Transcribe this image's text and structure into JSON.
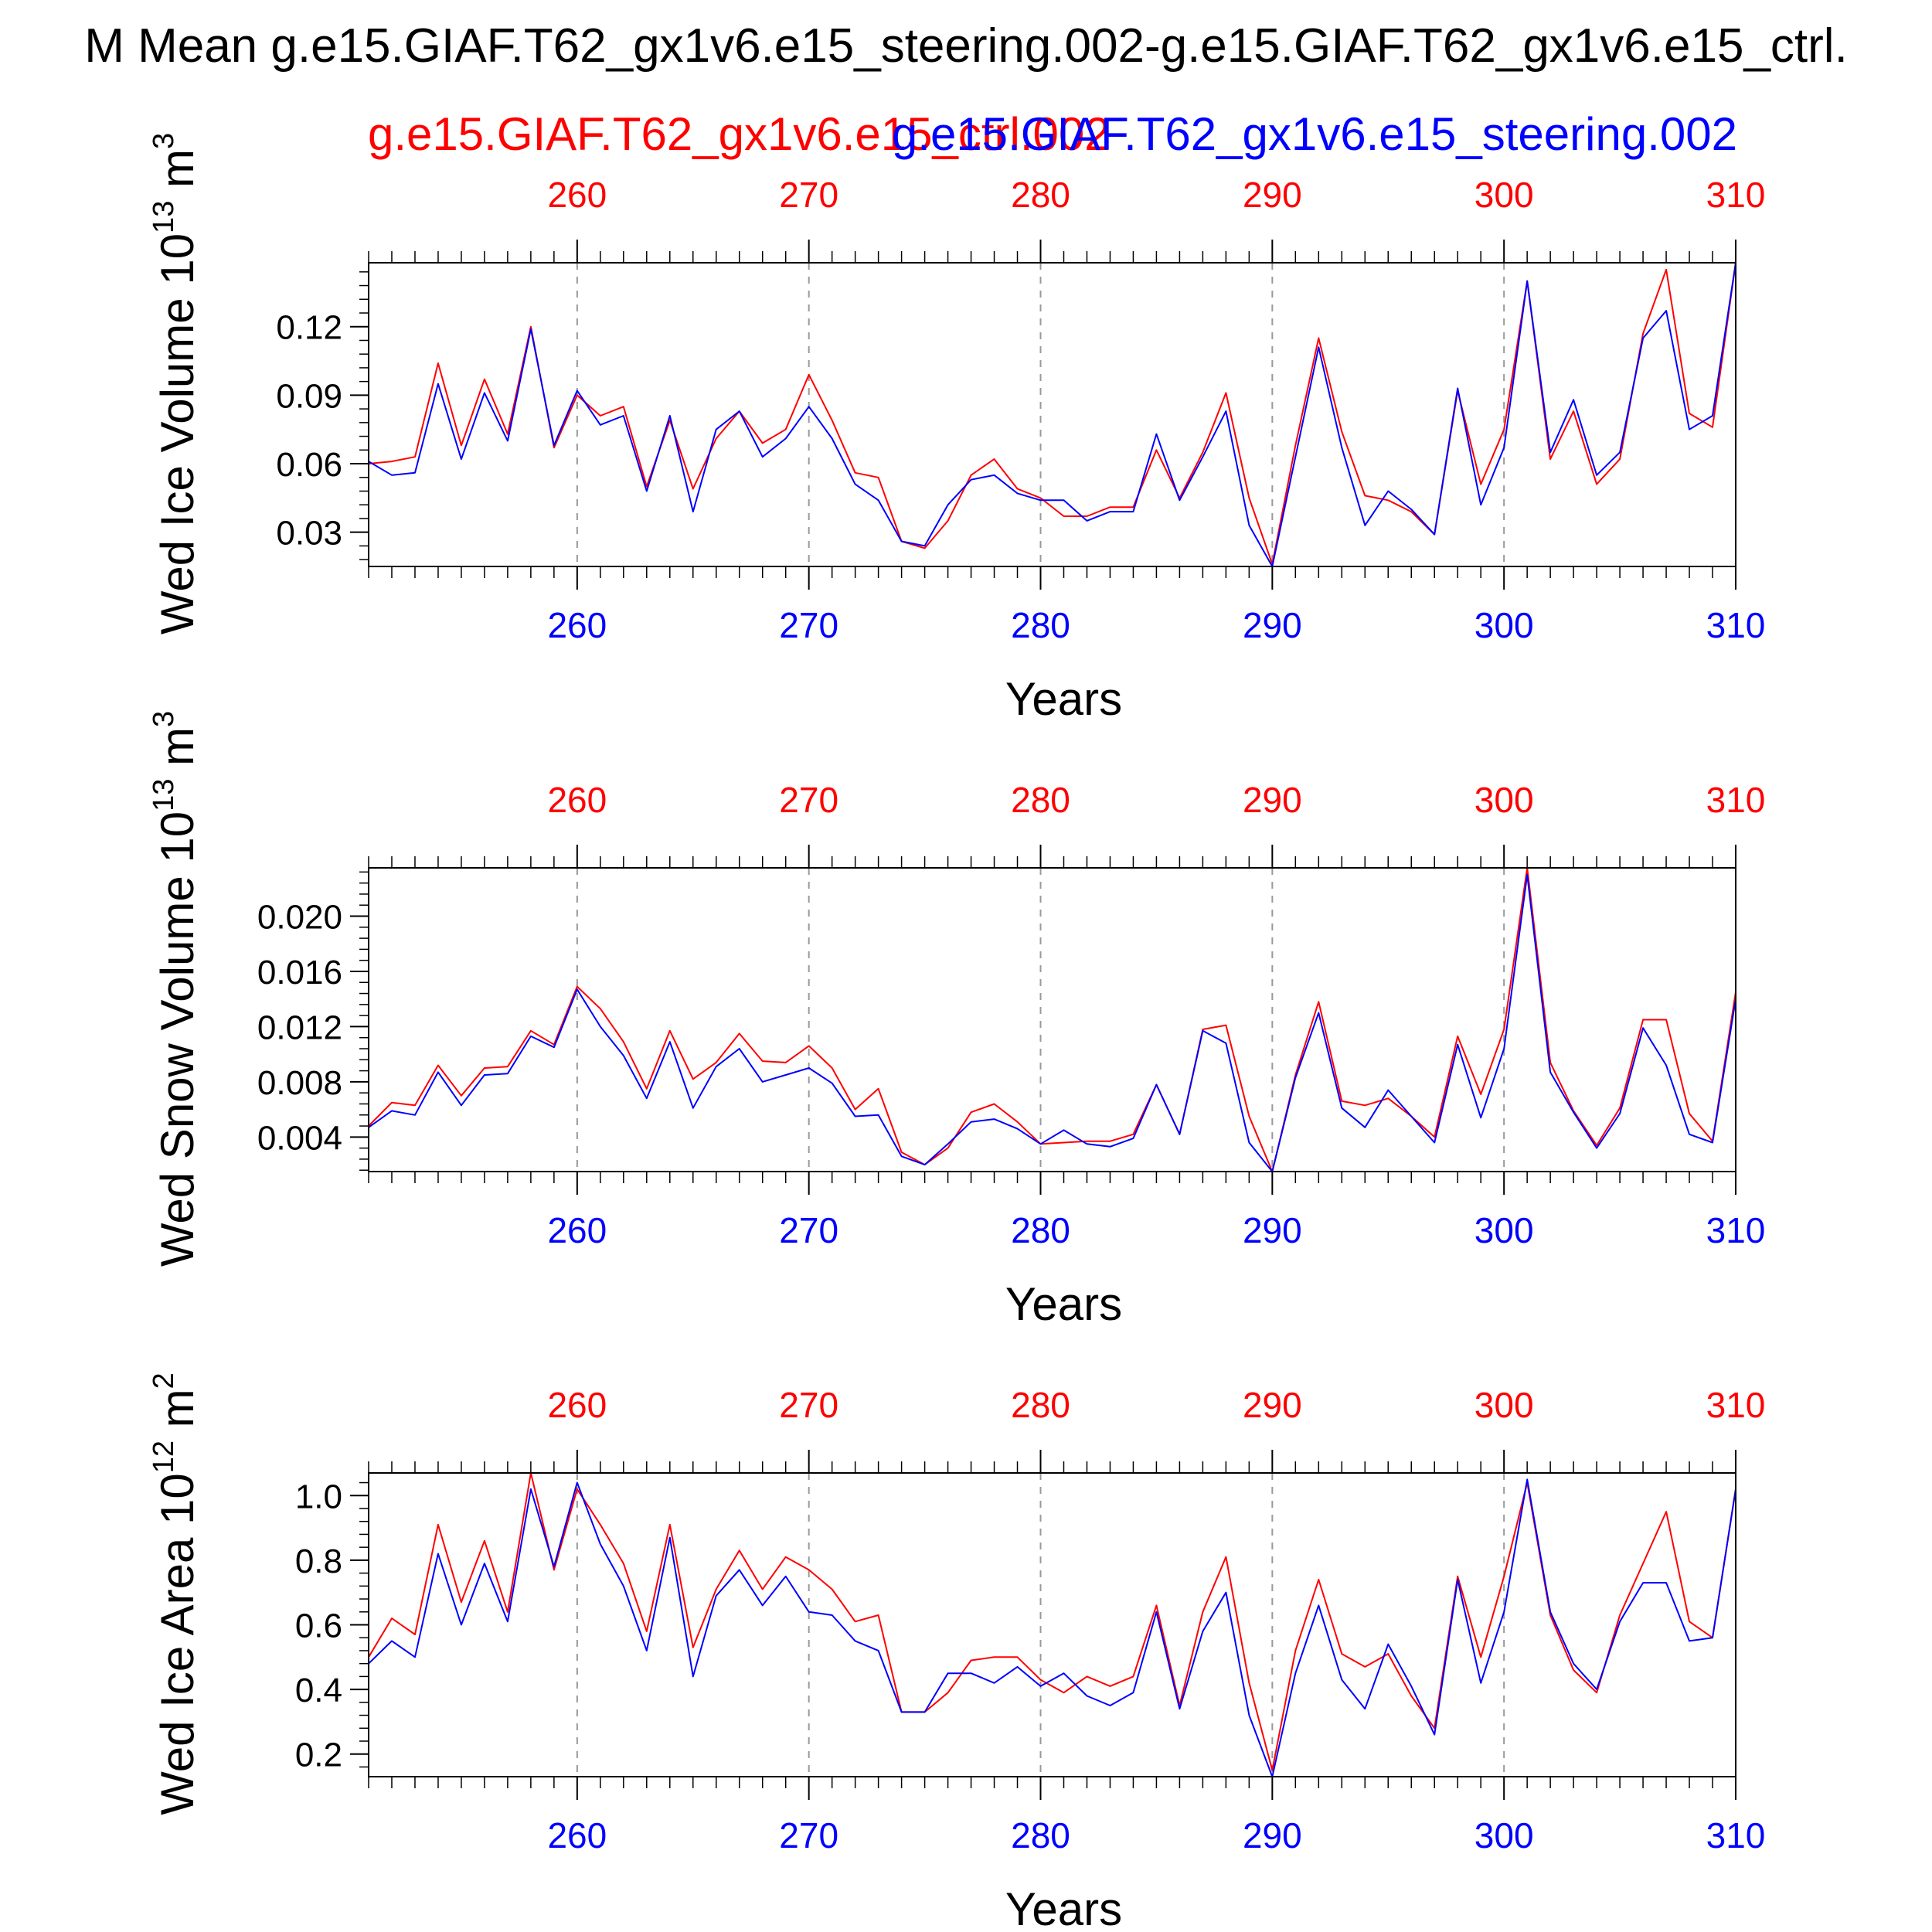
{
  "figure": {
    "title": "M Mean g.e15.GIAF.T62_gx1v6.e15_steering.002-g.e15.GIAF.T62_gx1v6.e15_ctrl.",
    "legend_red": "g.e15.GIAF.T62_gx1v6.e15_ctrl.002",
    "legend_blue": "g.e15.GIAF.T62_gx1v6.e15_steering.002",
    "colors": {
      "ctrl": "#ff0000",
      "steering": "#0000ff",
      "text": "#000000"
    }
  },
  "chart_data": [
    {
      "type": "line",
      "ylabel": "Wed Ice Volume 10^13 m^3",
      "ylabel_main": "Wed Ice Volume 10",
      "ylabel_exp": "13",
      "ylabel_unit": "m",
      "ylabel_unit_exp": "3",
      "xlabel": "Years",
      "xlim": [
        251,
        310
      ],
      "ylim": [
        0.015,
        0.148
      ],
      "xticks": [
        260,
        270,
        280,
        290,
        300,
        310
      ],
      "xticklabels": [
        "260",
        "270",
        "280",
        "290",
        "300",
        "310"
      ],
      "yticks": [
        0.03,
        0.06,
        0.09,
        0.12
      ],
      "yticklabels": [
        "0.03",
        "0.06",
        "0.09",
        "0.12"
      ],
      "grid_x": true,
      "x": [
        251,
        252,
        253,
        254,
        255,
        256,
        257,
        258,
        259,
        260,
        261,
        262,
        263,
        264,
        265,
        266,
        267,
        268,
        269,
        270,
        271,
        272,
        273,
        274,
        275,
        276,
        277,
        278,
        279,
        280,
        281,
        282,
        283,
        284,
        285,
        286,
        287,
        288,
        289,
        290,
        291,
        292,
        293,
        294,
        295,
        296,
        297,
        298,
        299,
        300,
        301,
        302,
        303,
        304,
        305,
        306,
        307,
        308,
        309,
        310
      ],
      "series": [
        {
          "name": "g.e15.GIAF.T62_gx1v6.e15_ctrl.002",
          "color": "#ff0000",
          "values": [
            0.06,
            0.061,
            0.063,
            0.104,
            0.068,
            0.097,
            0.073,
            0.12,
            0.067,
            0.09,
            0.081,
            0.085,
            0.05,
            0.079,
            0.049,
            0.071,
            0.083,
            0.069,
            0.075,
            0.099,
            0.079,
            0.056,
            0.054,
            0.026,
            0.023,
            0.035,
            0.055,
            0.062,
            0.049,
            0.045,
            0.037,
            0.037,
            0.041,
            0.041,
            0.066,
            0.045,
            0.065,
            0.091,
            0.045,
            0.016,
            0.068,
            0.115,
            0.074,
            0.046,
            0.044,
            0.039,
            0.029,
            0.092,
            0.051,
            0.075,
            0.14,
            0.062,
            0.083,
            0.051,
            0.062,
            0.117,
            0.145,
            0.082,
            0.076,
            0.148
          ]
        },
        {
          "name": "g.e15.GIAF.T62_gx1v6.e15_steering.002",
          "color": "#0000ff",
          "values": [
            0.061,
            0.055,
            0.056,
            0.095,
            0.062,
            0.091,
            0.07,
            0.119,
            0.068,
            0.092,
            0.077,
            0.081,
            0.048,
            0.081,
            0.039,
            0.075,
            0.083,
            0.063,
            0.071,
            0.085,
            0.071,
            0.051,
            0.044,
            0.026,
            0.024,
            0.042,
            0.053,
            0.055,
            0.047,
            0.044,
            0.044,
            0.035,
            0.039,
            0.039,
            0.073,
            0.044,
            0.063,
            0.083,
            0.033,
            0.015,
            0.063,
            0.111,
            0.067,
            0.033,
            0.048,
            0.04,
            0.029,
            0.093,
            0.042,
            0.067,
            0.14,
            0.065,
            0.088,
            0.055,
            0.065,
            0.115,
            0.127,
            0.075,
            0.081,
            0.148
          ]
        }
      ]
    },
    {
      "type": "line",
      "ylabel": "Wed Snow Volume 10^13 m^3",
      "ylabel_main": "Wed Snow Volume 10",
      "ylabel_exp": "13",
      "ylabel_unit": "m",
      "ylabel_unit_exp": "3",
      "xlabel": "Years",
      "xlim": [
        251,
        310
      ],
      "ylim": [
        0.0015,
        0.0235
      ],
      "xticks": [
        260,
        270,
        280,
        290,
        300,
        310
      ],
      "xticklabels": [
        "260",
        "270",
        "280",
        "290",
        "300",
        "310"
      ],
      "yticks": [
        0.004,
        0.008,
        0.012,
        0.016,
        0.02
      ],
      "yticklabels": [
        "0.004",
        "0.008",
        "0.012",
        "0.016",
        "0.020"
      ],
      "grid_x": true,
      "x": [
        251,
        252,
        253,
        254,
        255,
        256,
        257,
        258,
        259,
        260,
        261,
        262,
        263,
        264,
        265,
        266,
        267,
        268,
        269,
        270,
        271,
        272,
        273,
        274,
        275,
        276,
        277,
        278,
        279,
        280,
        281,
        282,
        283,
        284,
        285,
        286,
        287,
        288,
        289,
        290,
        291,
        292,
        293,
        294,
        295,
        296,
        297,
        298,
        299,
        300,
        301,
        302,
        303,
        304,
        305,
        306,
        307,
        308,
        309,
        310
      ],
      "series": [
        {
          "name": "g.e15.GIAF.T62_gx1v6.e15_ctrl.002",
          "color": "#ff0000",
          "values": [
            0.0048,
            0.0065,
            0.0063,
            0.0092,
            0.007,
            0.009,
            0.0091,
            0.0117,
            0.0107,
            0.0149,
            0.0133,
            0.0109,
            0.0075,
            0.0117,
            0.0082,
            0.0094,
            0.0115,
            0.0095,
            0.0094,
            0.0106,
            0.009,
            0.006,
            0.0075,
            0.0029,
            0.002,
            0.0032,
            0.0058,
            0.0064,
            0.0051,
            0.0035,
            0.0036,
            0.0037,
            0.0037,
            0.0042,
            0.0078,
            0.0042,
            0.0118,
            0.0121,
            0.0055,
            0.0015,
            0.0085,
            0.0138,
            0.0066,
            0.0063,
            0.0068,
            0.0055,
            0.004,
            0.0113,
            0.0071,
            0.0118,
            0.0235,
            0.0094,
            0.0059,
            0.0034,
            0.0061,
            0.0125,
            0.0125,
            0.0057,
            0.0037,
            0.0145
          ]
        },
        {
          "name": "g.e15.GIAF.T62_gx1v6.e15_steering.002",
          "color": "#0000ff",
          "values": [
            0.0047,
            0.0059,
            0.0056,
            0.0087,
            0.0063,
            0.0085,
            0.0086,
            0.0113,
            0.0105,
            0.0147,
            0.012,
            0.0099,
            0.0068,
            0.0109,
            0.0061,
            0.0091,
            0.0104,
            0.008,
            0.0085,
            0.009,
            0.0079,
            0.0055,
            0.0056,
            0.0026,
            0.002,
            0.0035,
            0.0051,
            0.0053,
            0.0046,
            0.0035,
            0.0045,
            0.0035,
            0.0033,
            0.0039,
            0.0078,
            0.0042,
            0.0117,
            0.0108,
            0.0036,
            0.0015,
            0.0083,
            0.013,
            0.0061,
            0.0047,
            0.0074,
            0.0055,
            0.0036,
            0.0107,
            0.0054,
            0.0104,
            0.023,
            0.0087,
            0.0058,
            0.0032,
            0.0057,
            0.0119,
            0.0092,
            0.0042,
            0.0036,
            0.014
          ]
        }
      ]
    },
    {
      "type": "line",
      "ylabel": "Wed Ice Area 10^12 m^2",
      "ylabel_main": "Wed Ice Area 10",
      "ylabel_exp": "12",
      "ylabel_unit": "m",
      "ylabel_unit_exp": "2",
      "xlabel": "Years",
      "xlim": [
        251,
        310
      ],
      "ylim": [
        0.13,
        1.07
      ],
      "xticks": [
        260,
        270,
        280,
        290,
        300,
        310
      ],
      "xticklabels": [
        "260",
        "270",
        "280",
        "290",
        "300",
        "310"
      ],
      "yticks": [
        0.2,
        0.4,
        0.6,
        0.8,
        1.0
      ],
      "yticklabels": [
        "0.2",
        "0.4",
        "0.6",
        "0.8",
        "1.0"
      ],
      "grid_x": true,
      "x": [
        251,
        252,
        253,
        254,
        255,
        256,
        257,
        258,
        259,
        260,
        261,
        262,
        263,
        264,
        265,
        266,
        267,
        268,
        269,
        270,
        271,
        272,
        273,
        274,
        275,
        276,
        277,
        278,
        279,
        280,
        281,
        282,
        283,
        284,
        285,
        286,
        287,
        288,
        289,
        290,
        291,
        292,
        293,
        294,
        295,
        296,
        297,
        298,
        299,
        300,
        301,
        302,
        303,
        304,
        305,
        306,
        307,
        308,
        309,
        310
      ],
      "series": [
        {
          "name": "g.e15.GIAF.T62_gx1v6.e15_ctrl.002",
          "color": "#ff0000",
          "values": [
            0.5,
            0.62,
            0.57,
            0.91,
            0.67,
            0.86,
            0.64,
            1.07,
            0.77,
            1.02,
            0.91,
            0.79,
            0.58,
            0.91,
            0.53,
            0.71,
            0.83,
            0.71,
            0.81,
            0.77,
            0.71,
            0.61,
            0.63,
            0.33,
            0.33,
            0.39,
            0.49,
            0.5,
            0.5,
            0.43,
            0.39,
            0.44,
            0.41,
            0.44,
            0.66,
            0.35,
            0.64,
            0.81,
            0.42,
            0.15,
            0.52,
            0.74,
            0.51,
            0.47,
            0.51,
            0.38,
            0.28,
            0.75,
            0.5,
            0.75,
            1.04,
            0.63,
            0.46,
            0.39,
            0.63,
            0.79,
            0.95,
            0.61,
            0.56,
            1.02
          ]
        },
        {
          "name": "g.e15.GIAF.T62_gx1v6.e15_steering.002",
          "color": "#0000ff",
          "values": [
            0.48,
            0.55,
            0.5,
            0.82,
            0.6,
            0.79,
            0.61,
            1.02,
            0.78,
            1.04,
            0.85,
            0.72,
            0.52,
            0.87,
            0.44,
            0.69,
            0.77,
            0.66,
            0.75,
            0.64,
            0.63,
            0.55,
            0.52,
            0.33,
            0.33,
            0.45,
            0.45,
            0.42,
            0.47,
            0.41,
            0.45,
            0.38,
            0.35,
            0.39,
            0.64,
            0.34,
            0.58,
            0.7,
            0.32,
            0.13,
            0.45,
            0.66,
            0.43,
            0.34,
            0.54,
            0.41,
            0.26,
            0.74,
            0.42,
            0.64,
            1.05,
            0.64,
            0.48,
            0.4,
            0.61,
            0.73,
            0.73,
            0.55,
            0.56,
            1.02
          ]
        }
      ]
    }
  ]
}
